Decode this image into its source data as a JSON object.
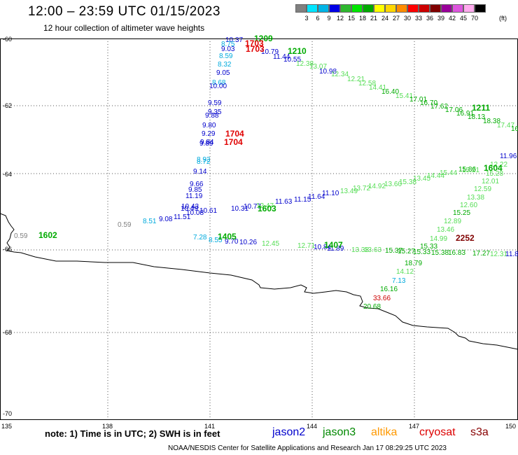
{
  "header": {
    "title": "12:00 – 23:59 UTC 01/15/2023",
    "subtitle": "12 hour collection of altimeter wave heights"
  },
  "legend": {
    "colors": [
      "#808080",
      "#00e5ff",
      "#00b4e6",
      "#0000e6",
      "#2eb82e",
      "#00e600",
      "#00aa00",
      "#ffff00",
      "#ffd700",
      "#ff8c00",
      "#ff0000",
      "#cc0000",
      "#800000",
      "#990099",
      "#dd55dd",
      "#ffaaee",
      "#000000"
    ],
    "labels": [
      "3",
      "6",
      "9",
      "12",
      "15",
      "18",
      "21",
      "24",
      "27",
      "30",
      "33",
      "36",
      "39",
      "42",
      "45",
      "70"
    ],
    "unit": "(ft)"
  },
  "axes": {
    "lat_labels": [
      "-60",
      "-62",
      "-64",
      "-66",
      "-68",
      "-70"
    ],
    "lon_labels": [
      "135",
      "138",
      "141",
      "144",
      "147",
      "150"
    ]
  },
  "passes": [
    {
      "label": "1209",
      "color": "#00aa00"
    },
    {
      "label": "1703",
      "color": "#e00000"
    },
    {
      "label": "1703",
      "color": "#e00000"
    },
    {
      "label": "1210",
      "color": "#00aa00"
    },
    {
      "label": "1211",
      "color": "#00aa00"
    },
    {
      "label": "1704",
      "color": "#e00000"
    },
    {
      "label": "1704",
      "color": "#e00000"
    },
    {
      "label": "1604",
      "color": "#00aa00"
    },
    {
      "label": "1603",
      "color": "#00aa00"
    },
    {
      "label": "1602",
      "color": "#00aa00"
    },
    {
      "label": "1405",
      "color": "#00aa00"
    },
    {
      "label": "1407",
      "color": "#00aa00"
    },
    {
      "label": "2252",
      "color": "#800000"
    }
  ],
  "values": [
    {
      "v": "10.37",
      "c": "#0000cc"
    },
    {
      "v": "8.75",
      "c": "#00aadd"
    },
    {
      "v": "9.03",
      "c": "#0000cc"
    },
    {
      "v": "8.59",
      "c": "#00aadd"
    },
    {
      "v": "8.32",
      "c": "#00aadd"
    },
    {
      "v": "9.05",
      "c": "#0000cc"
    },
    {
      "v": "8.68",
      "c": "#00aadd"
    },
    {
      "v": "10.00",
      "c": "#0000cc"
    },
    {
      "v": "9.59",
      "c": "#0000cc"
    },
    {
      "v": "9.35",
      "c": "#0000cc"
    },
    {
      "v": "9.88",
      "c": "#0000cc"
    },
    {
      "v": "9.80",
      "c": "#0000cc"
    },
    {
      "v": "9.29",
      "c": "#0000cc"
    },
    {
      "v": "9.84",
      "c": "#0000cc"
    },
    {
      "v": "9.89",
      "c": "#0000cc"
    },
    {
      "v": "8.93",
      "c": "#00aadd"
    },
    {
      "v": "8.72",
      "c": "#00aadd"
    },
    {
      "v": "9.14",
      "c": "#0000cc"
    },
    {
      "v": "9.66",
      "c": "#0000cc"
    },
    {
      "v": "9.85",
      "c": "#0000cc"
    },
    {
      "v": "11.19",
      "c": "#0000cc"
    },
    {
      "v": "10.43",
      "c": "#0000cc"
    },
    {
      "v": "10.49",
      "c": "#0000cc"
    },
    {
      "v": "8.51",
      "c": "#00aadd"
    },
    {
      "v": "9.08",
      "c": "#0000cc"
    },
    {
      "v": "11.51",
      "c": "#0000cc"
    },
    {
      "v": "10.08",
      "c": "#0000cc"
    },
    {
      "v": "10.61",
      "c": "#0000cc"
    },
    {
      "v": "10.31",
      "c": "#0000cc"
    },
    {
      "v": "10.77",
      "c": "#0000cc"
    },
    {
      "v": "12.47",
      "c": "#55dd55"
    },
    {
      "v": "11.63",
      "c": "#0000cc"
    },
    {
      "v": "11.15",
      "c": "#0000cc"
    },
    {
      "v": "11.64",
      "c": "#0000cc"
    },
    {
      "v": "11.10",
      "c": "#0000cc"
    },
    {
      "v": "13.49",
      "c": "#55dd55"
    },
    {
      "v": "13.72",
      "c": "#55dd55"
    },
    {
      "v": "14.92",
      "c": "#55dd55"
    },
    {
      "v": "13.60",
      "c": "#55dd55"
    },
    {
      "v": "15.38",
      "c": "#55dd55"
    },
    {
      "v": "13.45",
      "c": "#55dd55"
    },
    {
      "v": "14.44",
      "c": "#55dd55"
    },
    {
      "v": "15.44",
      "c": "#55dd55"
    },
    {
      "v": "15.21",
      "c": "#55dd55"
    },
    {
      "v": "15.86",
      "c": "#00aa00"
    },
    {
      "v": "10.79",
      "c": "#0000cc"
    },
    {
      "v": "11.44",
      "c": "#0000cc"
    },
    {
      "v": "10.55",
      "c": "#0000cc"
    },
    {
      "v": "12.38",
      "c": "#55dd55"
    },
    {
      "v": "13.07",
      "c": "#55dd55"
    },
    {
      "v": "10.98",
      "c": "#0000cc"
    },
    {
      "v": "12.34",
      "c": "#55dd55"
    },
    {
      "v": "12.21",
      "c": "#55dd55"
    },
    {
      "v": "12.58",
      "c": "#55dd55"
    },
    {
      "v": "14.41",
      "c": "#55dd55"
    },
    {
      "v": "16.40",
      "c": "#00aa00"
    },
    {
      "v": "15.41",
      "c": "#55dd55"
    },
    {
      "v": "17.01",
      "c": "#00aa00"
    },
    {
      "v": "16.70",
      "c": "#00aa00"
    },
    {
      "v": "17.62",
      "c": "#00aa00"
    },
    {
      "v": "17.06",
      "c": "#00aa00"
    },
    {
      "v": "16.91",
      "c": "#00aa00"
    },
    {
      "v": "18.13",
      "c": "#00aa00"
    },
    {
      "v": "18.38",
      "c": "#00aa00"
    },
    {
      "v": "17.47",
      "c": "#55dd55"
    },
    {
      "v": "16",
      "c": "#00aa00"
    },
    {
      "v": "11.96",
      "c": "#0000cc"
    },
    {
      "v": "12.22",
      "c": "#55dd55"
    },
    {
      "v": "15.28",
      "c": "#55dd55"
    },
    {
      "v": "12.01",
      "c": "#55dd55"
    },
    {
      "v": "12.59",
      "c": "#55dd55"
    },
    {
      "v": "13.38",
      "c": "#55dd55"
    },
    {
      "v": "12.60",
      "c": "#55dd55"
    },
    {
      "v": "15.25",
      "c": "#00aa00"
    },
    {
      "v": "12.89",
      "c": "#55dd55"
    },
    {
      "v": "13.46",
      "c": "#55dd55"
    },
    {
      "v": "14.99",
      "c": "#55dd55"
    },
    {
      "v": "0.59",
      "c": "#808080"
    },
    {
      "v": "0.59",
      "c": "#808080"
    },
    {
      "v": "7.28",
      "c": "#00aadd"
    },
    {
      "v": "8.55",
      "c": "#00aadd"
    },
    {
      "v": "9.70",
      "c": "#0000cc"
    },
    {
      "v": "10.26",
      "c": "#0000cc"
    },
    {
      "v": "12.45",
      "c": "#55dd55"
    },
    {
      "v": "12.71",
      "c": "#55dd55"
    },
    {
      "v": "10.84",
      "c": "#0000cc"
    },
    {
      "v": "11.89",
      "c": "#0000cc"
    },
    {
      "v": "13.38",
      "c": "#55dd55"
    },
    {
      "v": "13.63",
      "c": "#55dd55"
    },
    {
      "v": "15.37",
      "c": "#00aa00"
    },
    {
      "v": "15.27",
      "c": "#00aa00"
    },
    {
      "v": "15.33",
      "c": "#00aa00"
    },
    {
      "v": "15.38",
      "c": "#00aa00"
    },
    {
      "v": "16.83",
      "c": "#00aa00"
    },
    {
      "v": "17.27",
      "c": "#00aa00"
    },
    {
      "v": "12.31",
      "c": "#55dd55"
    },
    {
      "v": "11.8",
      "c": "#0000cc"
    },
    {
      "v": "15.33",
      "c": "#00aa00"
    },
    {
      "v": "18.79",
      "c": "#00aa00"
    },
    {
      "v": "14.12",
      "c": "#55dd55"
    },
    {
      "v": "7.13",
      "c": "#00aadd"
    },
    {
      "v": "16.16",
      "c": "#00aa00"
    },
    {
      "v": "33.66",
      "c": "#cc0000"
    },
    {
      "v": "20.68",
      "c": "#00aa00"
    }
  ],
  "footer": {
    "note": "note:  1) Time is in UTC;  2) SWH is in feet",
    "satellites": [
      {
        "name": "jason2",
        "color": "#0000cc"
      },
      {
        "name": "jason3",
        "color": "#008800"
      },
      {
        "name": "altika",
        "color": "#ff9900"
      },
      {
        "name": "cryosat",
        "color": "#dd0000"
      },
      {
        "name": "s3a",
        "color": "#880000"
      }
    ],
    "credit": "NOAA/NESDIS Center for Satellite Applications and Research    Jan 17 08:29:25 UTC 2023"
  }
}
